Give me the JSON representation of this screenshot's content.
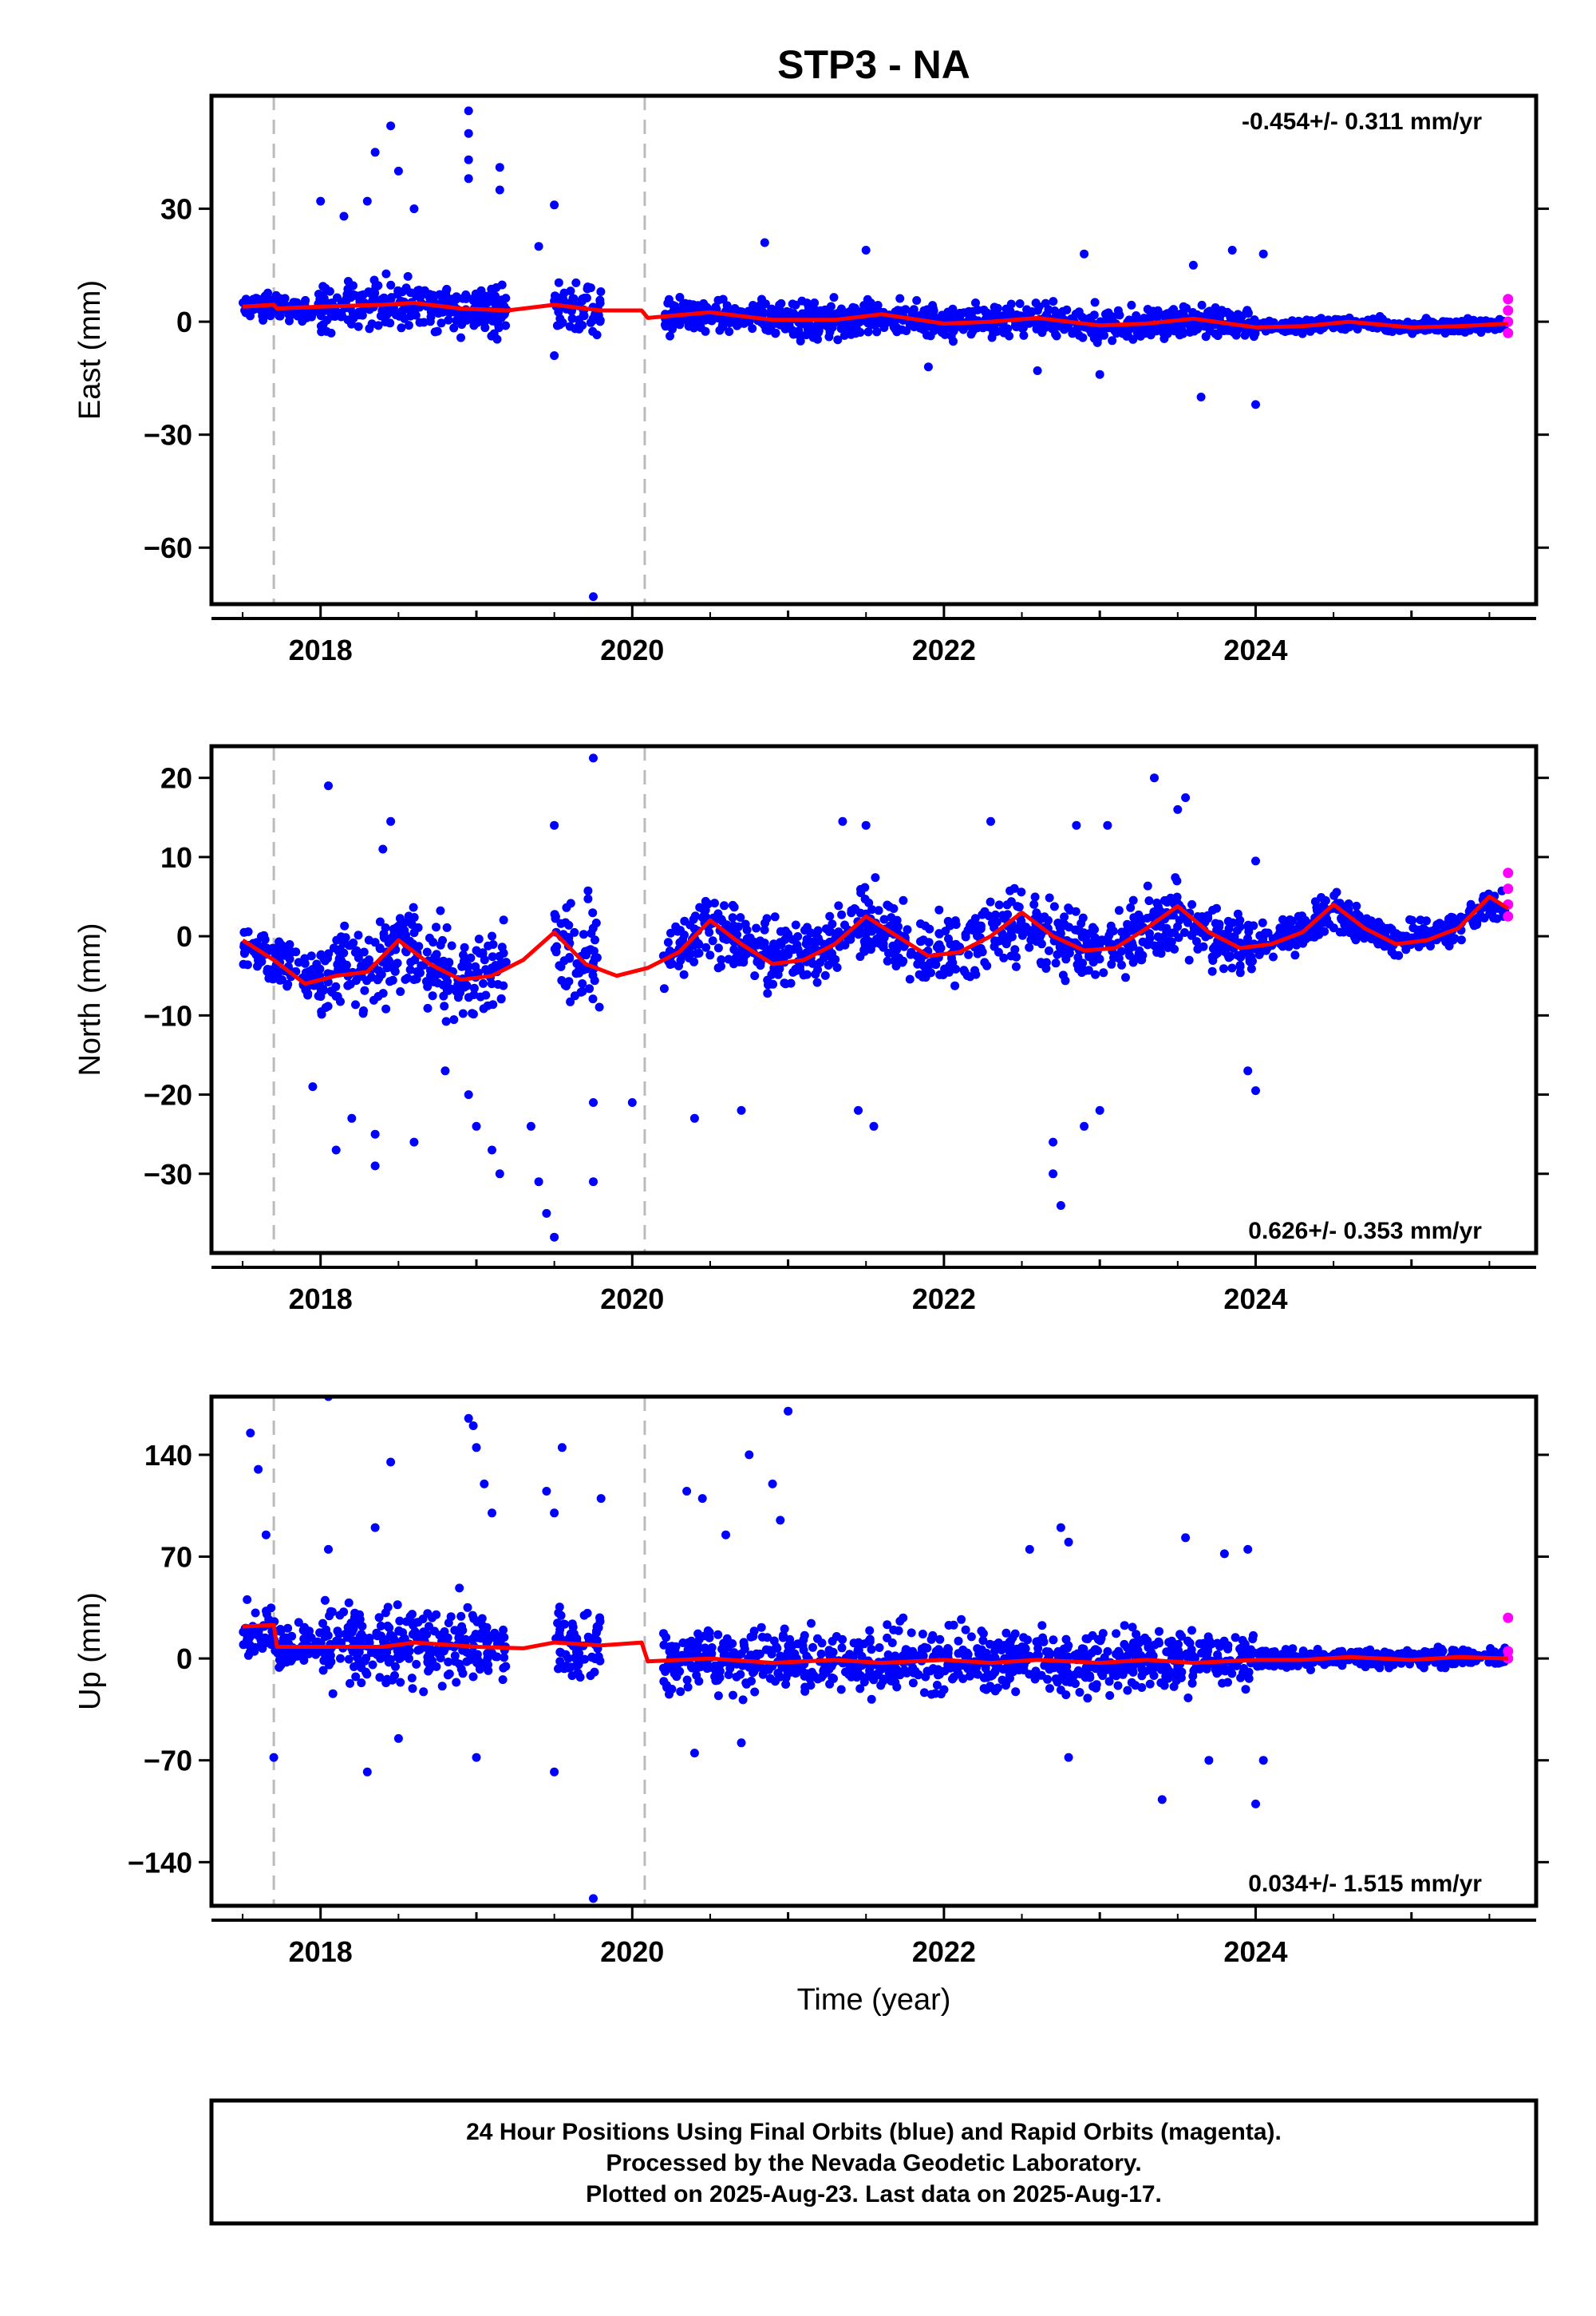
{
  "chart_data": {
    "type": "scatter",
    "title": "STP3 - NA",
    "xlabel": "Time (year)",
    "x_ticks": [
      2018,
      2020,
      2022,
      2024
    ],
    "xlim": [
      2017.3,
      2025.8
    ],
    "equipment_changes": [
      2017.7,
      2020.08
    ],
    "colors": {
      "final_orbits": "#0000ff",
      "rapid_orbits": "#ff00ff",
      "model": "#ff0000",
      "event_lines": "#bbbbbb"
    },
    "panels": [
      {
        "ylabel": "East (mm)",
        "ylim": [
          -75,
          60
        ],
        "y_ticks": [
          30,
          0,
          -30,
          -60
        ],
        "rate": "-0.454+/- 0.311 mm/yr",
        "rate_position": "top-right",
        "noise_segments": [
          {
            "start": 2017.5,
            "end": 2018.0,
            "base": 3,
            "spread": 3
          },
          {
            "start": 2018.0,
            "end": 2019.2,
            "base": 4,
            "spread": 6
          },
          {
            "start": 2019.5,
            "end": 2019.8,
            "base": 2,
            "spread": 6
          },
          {
            "start": 2020.2,
            "end": 2024.0,
            "base": 0,
            "spread": 4
          },
          {
            "start": 2024.0,
            "end": 2025.6,
            "base": -1,
            "spread": 1.5
          }
        ],
        "outliers": [
          [
            2018.45,
            52
          ],
          [
            2018.35,
            45
          ],
          [
            2018.5,
            40
          ],
          [
            2018.3,
            32
          ],
          [
            2018.6,
            30
          ],
          [
            2018.95,
            56
          ],
          [
            2018.95,
            50
          ],
          [
            2018.95,
            43
          ],
          [
            2018.95,
            38
          ],
          [
            2019.15,
            41
          ],
          [
            2019.15,
            35
          ],
          [
            2018.0,
            32
          ],
          [
            2018.15,
            28
          ],
          [
            2019.5,
            31
          ],
          [
            2019.4,
            20
          ],
          [
            2019.5,
            -9
          ],
          [
            2019.75,
            -73
          ],
          [
            2020.85,
            21
          ],
          [
            2021.5,
            19
          ],
          [
            2022.9,
            18
          ],
          [
            2023.6,
            15
          ],
          [
            2023.85,
            19
          ],
          [
            2024.0,
            -22
          ],
          [
            2023.65,
            -20
          ],
          [
            2024.05,
            18
          ],
          [
            2022.6,
            -13
          ],
          [
            2021.9,
            -12
          ],
          [
            2023.0,
            -14
          ]
        ],
        "rapid": [
          [
            2025.62,
            6
          ],
          [
            2025.62,
            3
          ],
          [
            2025.62,
            0
          ],
          [
            2025.62,
            -3
          ]
        ],
        "model": [
          [
            2017.5,
            4
          ],
          [
            2017.7,
            4.5
          ],
          [
            2017.72,
            3.5
          ],
          [
            2018.0,
            4
          ],
          [
            2018.4,
            4.5
          ],
          [
            2018.6,
            5
          ],
          [
            2018.9,
            3.5
          ],
          [
            2019.2,
            3
          ],
          [
            2019.5,
            4.5
          ],
          [
            2019.8,
            3
          ],
          [
            2020.06,
            3
          ],
          [
            2020.1,
            1
          ],
          [
            2020.5,
            2.5
          ],
          [
            2020.9,
            0.5
          ],
          [
            2021.3,
            0.5
          ],
          [
            2021.6,
            2
          ],
          [
            2022.0,
            -0.5
          ],
          [
            2022.3,
            0
          ],
          [
            2022.6,
            1
          ],
          [
            2023.0,
            -1
          ],
          [
            2023.3,
            -0.5
          ],
          [
            2023.6,
            0.8
          ],
          [
            2024.0,
            -1.5
          ],
          [
            2024.3,
            -1.2
          ],
          [
            2024.6,
            0
          ],
          [
            2025.0,
            -1.5
          ],
          [
            2025.3,
            -1.2
          ],
          [
            2025.62,
            -0.5
          ]
        ]
      },
      {
        "ylabel": "North (mm)",
        "ylim": [
          -40,
          24
        ],
        "y_ticks": [
          20,
          10,
          0,
          -10,
          -20,
          -30
        ],
        "rate": "0.626+/- 0.353 mm/yr",
        "rate_position": "bottom-right",
        "noise_segments": [
          {
            "start": 2017.5,
            "end": 2018.0,
            "base": -3,
            "spread": 3
          },
          {
            "start": 2018.0,
            "end": 2019.2,
            "base": -3,
            "spread": 5
          },
          {
            "start": 2019.5,
            "end": 2019.8,
            "base": -2,
            "spread": 6
          },
          {
            "start": 2020.2,
            "end": 2024.0,
            "base": -0.5,
            "spread": 4
          },
          {
            "start": 2024.0,
            "end": 2025.6,
            "base": 1.5,
            "spread": 2
          }
        ],
        "outliers": [
          [
            2018.05,
            19
          ],
          [
            2018.45,
            14.5
          ],
          [
            2018.4,
            11
          ],
          [
            2017.95,
            -19
          ],
          [
            2018.1,
            -27
          ],
          [
            2018.2,
            -23
          ],
          [
            2018.35,
            -25
          ],
          [
            2018.35,
            -29
          ],
          [
            2018.6,
            -26
          ],
          [
            2018.8,
            -17
          ],
          [
            2018.95,
            -20
          ],
          [
            2019.0,
            -24
          ],
          [
            2019.1,
            -27
          ],
          [
            2019.15,
            -30
          ],
          [
            2019.35,
            -24
          ],
          [
            2019.4,
            -31
          ],
          [
            2019.45,
            -35
          ],
          [
            2019.5,
            -38
          ],
          [
            2019.5,
            14
          ],
          [
            2019.75,
            22.5
          ],
          [
            2019.75,
            -31
          ],
          [
            2019.75,
            -21
          ],
          [
            2020.0,
            -21
          ],
          [
            2020.4,
            -23
          ],
          [
            2020.7,
            -22
          ],
          [
            2021.35,
            14.5
          ],
          [
            2021.5,
            14
          ],
          [
            2021.55,
            -24
          ],
          [
            2021.45,
            -22
          ],
          [
            2022.3,
            14.5
          ],
          [
            2022.7,
            -26
          ],
          [
            2022.7,
            -30
          ],
          [
            2022.75,
            -34
          ],
          [
            2022.9,
            -24
          ],
          [
            2023.0,
            -22
          ],
          [
            2022.85,
            14
          ],
          [
            2023.05,
            14
          ],
          [
            2023.35,
            20
          ],
          [
            2023.5,
            16
          ],
          [
            2023.55,
            17.5
          ],
          [
            2023.95,
            -17
          ],
          [
            2024.0,
            -19.5
          ],
          [
            2024.0,
            9.5
          ]
        ],
        "rapid": [
          [
            2025.62,
            8
          ],
          [
            2025.62,
            6
          ],
          [
            2025.62,
            4
          ],
          [
            2025.62,
            2.5
          ]
        ],
        "model": [
          [
            2017.5,
            -0.5
          ],
          [
            2017.7,
            -3
          ],
          [
            2017.9,
            -6
          ],
          [
            2018.1,
            -5
          ],
          [
            2018.3,
            -4.5
          ],
          [
            2018.5,
            -0.5
          ],
          [
            2018.7,
            -3.5
          ],
          [
            2018.9,
            -5.5
          ],
          [
            2019.1,
            -5
          ],
          [
            2019.3,
            -3
          ],
          [
            2019.5,
            0.5
          ],
          [
            2019.7,
            -3.5
          ],
          [
            2019.9,
            -5
          ],
          [
            2020.1,
            -4
          ],
          [
            2020.3,
            -2
          ],
          [
            2020.5,
            2
          ],
          [
            2020.7,
            -1
          ],
          [
            2020.9,
            -3.5
          ],
          [
            2021.1,
            -3
          ],
          [
            2021.3,
            -1
          ],
          [
            2021.5,
            2.5
          ],
          [
            2021.7,
            0
          ],
          [
            2021.9,
            -2.5
          ],
          [
            2022.1,
            -2
          ],
          [
            2022.3,
            0
          ],
          [
            2022.5,
            3
          ],
          [
            2022.7,
            0
          ],
          [
            2022.9,
            -1.8
          ],
          [
            2023.1,
            -1.5
          ],
          [
            2023.3,
            1
          ],
          [
            2023.5,
            3.8
          ],
          [
            2023.7,
            0.5
          ],
          [
            2023.9,
            -1.5
          ],
          [
            2024.1,
            -1
          ],
          [
            2024.3,
            0.5
          ],
          [
            2024.5,
            4
          ],
          [
            2024.7,
            1
          ],
          [
            2024.9,
            -1
          ],
          [
            2025.1,
            -0.5
          ],
          [
            2025.3,
            1
          ],
          [
            2025.5,
            5
          ],
          [
            2025.62,
            3.5
          ]
        ]
      },
      {
        "ylabel": "Up (mm)",
        "ylim": [
          -170,
          180
        ],
        "y_ticks": [
          140,
          70,
          0,
          -70,
          -140
        ],
        "rate": "0.034+/- 1.515 mm/yr",
        "rate_position": "bottom-right",
        "noise_segments": [
          {
            "start": 2017.5,
            "end": 2018.0,
            "base": 10,
            "spread": 14
          },
          {
            "start": 2018.0,
            "end": 2019.2,
            "base": 8,
            "spread": 25
          },
          {
            "start": 2019.5,
            "end": 2019.8,
            "base": 8,
            "spread": 25
          },
          {
            "start": 2020.2,
            "end": 2024.0,
            "base": 0,
            "spread": 20
          },
          {
            "start": 2024.0,
            "end": 2025.6,
            "base": 2,
            "spread": 6
          }
        ],
        "outliers": [
          [
            2017.55,
            155
          ],
          [
            2017.6,
            130
          ],
          [
            2017.65,
            85
          ],
          [
            2017.7,
            -68
          ],
          [
            2018.05,
            180
          ],
          [
            2018.05,
            75
          ],
          [
            2018.45,
            135
          ],
          [
            2018.35,
            90
          ],
          [
            2018.3,
            -78
          ],
          [
            2018.5,
            -55
          ],
          [
            2018.95,
            165
          ],
          [
            2018.98,
            160
          ],
          [
            2019.0,
            145
          ],
          [
            2019.05,
            120
          ],
          [
            2019.1,
            100
          ],
          [
            2019.0,
            -68
          ],
          [
            2019.45,
            115
          ],
          [
            2019.5,
            100
          ],
          [
            2019.55,
            145
          ],
          [
            2019.5,
            -78
          ],
          [
            2019.75,
            -165
          ],
          [
            2019.8,
            110
          ],
          [
            2020.35,
            115
          ],
          [
            2020.45,
            110
          ],
          [
            2020.6,
            85
          ],
          [
            2020.75,
            140
          ],
          [
            2020.9,
            120
          ],
          [
            2020.95,
            95
          ],
          [
            2021.0,
            170
          ],
          [
            2020.4,
            -65
          ],
          [
            2020.7,
            -58
          ],
          [
            2022.55,
            75
          ],
          [
            2022.75,
            90
          ],
          [
            2022.8,
            80
          ],
          [
            2022.8,
            -68
          ],
          [
            2023.4,
            -97
          ],
          [
            2023.55,
            83
          ],
          [
            2023.8,
            72
          ],
          [
            2023.95,
            75
          ],
          [
            2024.0,
            -100
          ],
          [
            2023.7,
            -70
          ],
          [
            2024.05,
            -70
          ]
        ],
        "rapid": [
          [
            2025.62,
            28
          ],
          [
            2025.62,
            5
          ],
          [
            2025.62,
            0
          ]
        ],
        "model": [
          [
            2017.5,
            22
          ],
          [
            2017.7,
            23
          ],
          [
            2017.72,
            8
          ],
          [
            2018.0,
            8
          ],
          [
            2018.4,
            8
          ],
          [
            2018.6,
            11
          ],
          [
            2019.0,
            8
          ],
          [
            2019.3,
            7
          ],
          [
            2019.5,
            11
          ],
          [
            2019.8,
            9
          ],
          [
            2020.06,
            11
          ],
          [
            2020.1,
            -2
          ],
          [
            2020.5,
            0
          ],
          [
            2020.9,
            -3
          ],
          [
            2021.3,
            -1
          ],
          [
            2021.6,
            -3
          ],
          [
            2022.0,
            -1
          ],
          [
            2022.3,
            -3
          ],
          [
            2022.6,
            -1
          ],
          [
            2023.0,
            -3
          ],
          [
            2023.3,
            -1
          ],
          [
            2023.6,
            -3
          ],
          [
            2024.0,
            -1
          ],
          [
            2024.3,
            -1
          ],
          [
            2024.6,
            1
          ],
          [
            2025.0,
            -1
          ],
          [
            2025.3,
            1
          ],
          [
            2025.62,
            0
          ]
        ]
      }
    ]
  },
  "footer": {
    "line1": "24 Hour Positions Using Final Orbits (blue) and Rapid Orbits (magenta).",
    "line2": "Processed by the Nevada Geodetic Laboratory.",
    "line3": "Plotted on 2025-Aug-23. Last data on 2025-Aug-17."
  }
}
